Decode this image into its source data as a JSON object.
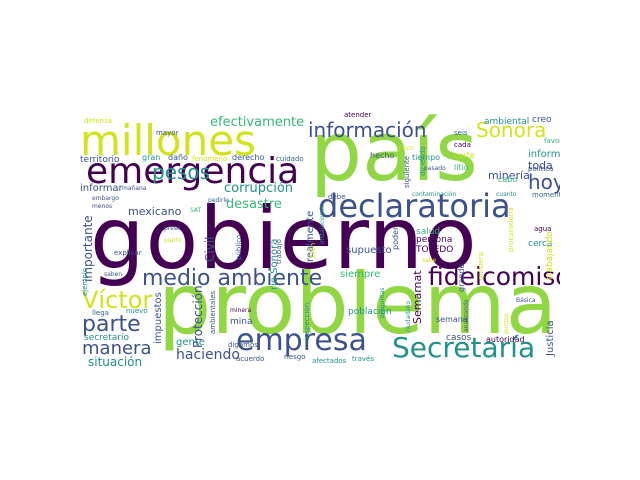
{
  "palette": {
    "background": "#ffffff",
    "dark_purple": "#440154",
    "indigo": "#3b528b",
    "blue": "#31688e",
    "teal": "#21918c",
    "green": "#35b779",
    "lime": "#90d743",
    "yellow": "#d2e21b"
  },
  "words": [
    {
      "text": "gobierno",
      "weight": 100,
      "color": "dark_purple",
      "orientation": "horizontal"
    },
    {
      "text": "país",
      "weight": 88,
      "color": "lime",
      "orientation": "horizontal"
    },
    {
      "text": "problema",
      "weight": 85,
      "color": "lime",
      "orientation": "horizontal"
    },
    {
      "text": "millones",
      "weight": 45,
      "color": "yellow",
      "orientation": "horizontal"
    },
    {
      "text": "emergencia",
      "weight": 42,
      "color": "dark_purple",
      "orientation": "horizontal"
    },
    {
      "text": "declaratoria",
      "weight": 36,
      "color": "indigo",
      "orientation": "horizontal"
    },
    {
      "text": "empresa",
      "weight": 34,
      "color": "indigo",
      "orientation": "horizontal"
    },
    {
      "text": "fideicomiso",
      "weight": 30,
      "color": "dark_purple",
      "orientation": "horizontal"
    },
    {
      "text": "Secretaría",
      "weight": 30,
      "color": "teal",
      "orientation": "horizontal"
    },
    {
      "text": "medio ambiente",
      "weight": 27,
      "color": "indigo",
      "orientation": "horizontal"
    },
    {
      "text": "Víctor",
      "weight": 24,
      "color": "yellow",
      "orientation": "horizontal"
    },
    {
      "text": "parte",
      "weight": 22,
      "color": "indigo",
      "orientation": "horizontal"
    },
    {
      "text": "información",
      "weight": 21,
      "color": "indigo",
      "orientation": "horizontal"
    },
    {
      "text": "Sonora",
      "weight": 21,
      "color": "yellow",
      "orientation": "horizontal"
    },
    {
      "text": "manera",
      "weight": 20,
      "color": "indigo",
      "orientation": "horizontal"
    },
    {
      "text": "pesos",
      "weight": 20,
      "color": "teal",
      "orientation": "horizontal"
    },
    {
      "text": "hoy",
      "weight": 19,
      "color": "indigo",
      "orientation": "horizontal"
    },
    {
      "text": "efectivamente",
      "weight": 14,
      "color": "green",
      "orientation": "horizontal"
    },
    {
      "text": "corrupción",
      "weight": 14,
      "color": "teal",
      "orientation": "horizontal"
    },
    {
      "text": "desastre",
      "weight": 14,
      "color": "green",
      "orientation": "horizontal"
    },
    {
      "text": "haciendo",
      "weight": 15,
      "color": "indigo",
      "orientation": "horizontal"
    },
    {
      "text": "situación",
      "weight": 13,
      "color": "teal",
      "orientation": "horizontal"
    },
    {
      "text": "minería",
      "weight": 12,
      "color": "indigo",
      "orientation": "horizontal"
    },
    {
      "text": "toda",
      "weight": 12,
      "color": "indigo",
      "orientation": "horizontal"
    },
    {
      "text": "informe",
      "weight": 11,
      "color": "teal",
      "orientation": "horizontal"
    },
    {
      "text": "mexicano",
      "weight": 11,
      "color": "indigo",
      "orientation": "horizontal"
    },
    {
      "text": "informar",
      "weight": 10,
      "color": "indigo",
      "orientation": "horizontal"
    },
    {
      "text": "gente",
      "weight": 11,
      "color": "teal",
      "orientation": "horizontal"
    },
    {
      "text": "casos",
      "weight": 10,
      "color": "indigo",
      "orientation": "horizontal"
    },
    {
      "text": "supuesto",
      "weight": 11,
      "color": "indigo",
      "orientation": "horizontal"
    },
    {
      "text": "siempre",
      "weight": 10,
      "color": "green",
      "orientation": "horizontal"
    },
    {
      "text": "mina",
      "weight": 10,
      "color": "indigo",
      "orientation": "horizontal"
    },
    {
      "text": "secretario",
      "weight": 10,
      "color": "teal",
      "orientation": "horizontal"
    },
    {
      "text": "ambiental",
      "weight": 9,
      "color": "teal",
      "orientation": "horizontal"
    },
    {
      "text": "cabo",
      "weight": 9,
      "color": "green",
      "orientation": "horizontal"
    },
    {
      "text": "territorio",
      "weight": 9,
      "color": "indigo",
      "orientation": "horizontal"
    },
    {
      "text": "salud",
      "weight": 9,
      "color": "green",
      "orientation": "horizontal"
    },
    {
      "text": "persona",
      "weight": 9,
      "color": "dark_purple",
      "orientation": "horizontal"
    },
    {
      "text": "TOLEDO",
      "weight": 9,
      "color": "dark_purple",
      "orientation": "horizontal"
    },
    {
      "text": "cerca",
      "weight": 9,
      "color": "teal",
      "orientation": "horizontal"
    },
    {
      "text": "población",
      "weight": 9,
      "color": "teal",
      "orientation": "horizontal"
    },
    {
      "text": "semana",
      "weight": 8,
      "color": "indigo",
      "orientation": "horizontal"
    },
    {
      "text": "autoridad",
      "weight": 8,
      "color": "dark_purple",
      "orientation": "horizontal"
    },
    {
      "text": "hecho",
      "weight": 8,
      "color": "indigo",
      "orientation": "horizontal"
    },
    {
      "text": "tiempo",
      "weight": 8,
      "color": "teal",
      "orientation": "horizontal"
    },
    {
      "text": "litio",
      "weight": 8,
      "color": "green",
      "orientation": "horizontal"
    },
    {
      "text": "corte",
      "weight": 8,
      "color": "yellow",
      "orientation": "horizontal"
    },
    {
      "text": "gran",
      "weight": 8,
      "color": "teal",
      "orientation": "horizontal"
    },
    {
      "text": "daño",
      "weight": 8,
      "color": "indigo",
      "orientation": "horizontal"
    },
    {
      "text": "derecho",
      "weight": 8,
      "color": "indigo",
      "orientation": "horizontal"
    },
    {
      "text": "fenómeno",
      "weight": 7,
      "color": "yellow",
      "orientation": "horizontal"
    },
    {
      "text": "cuidado",
      "weight": 7,
      "color": "blue",
      "orientation": "horizontal"
    },
    {
      "text": "defensa",
      "weight": 7,
      "color": "yellow",
      "orientation": "horizontal"
    },
    {
      "text": "mayor",
      "weight": 7,
      "color": "indigo",
      "orientation": "horizontal"
    },
    {
      "text": "seis",
      "weight": 7,
      "color": "blue",
      "orientation": "horizontal"
    },
    {
      "text": "cada",
      "weight": 7,
      "color": "dark_purple",
      "orientation": "horizontal"
    },
    {
      "text": "favor",
      "weight": 7,
      "color": "green",
      "orientation": "horizontal"
    },
    {
      "text": "creo",
      "weight": 10,
      "color": "indigo",
      "orientation": "horizontal"
    },
    {
      "text": "política",
      "weight": 7,
      "color": "indigo",
      "orientation": "horizontal"
    },
    {
      "text": "agua",
      "weight": 7,
      "color": "dark_purple",
      "orientation": "horizontal"
    },
    {
      "text": "momento",
      "weight": 7,
      "color": "blue",
      "orientation": "horizontal"
    },
    {
      "text": "atender",
      "weight": 7,
      "color": "dark_purple",
      "orientation": "horizontal"
    },
    {
      "text": "cinco",
      "weight": 6,
      "color": "yellow",
      "orientation": "horizontal"
    },
    {
      "text": "pasado",
      "weight": 6,
      "color": "indigo",
      "orientation": "horizontal"
    },
    {
      "text": "contaminación",
      "weight": 6,
      "color": "teal",
      "orientation": "horizontal"
    },
    {
      "text": "cuanto",
      "weight": 6,
      "color": "teal",
      "orientation": "horizontal"
    },
    {
      "text": "debe",
      "weight": 7,
      "color": "indigo",
      "orientation": "horizontal"
    },
    {
      "text": "mañana",
      "weight": 6,
      "color": "indigo",
      "orientation": "horizontal"
    },
    {
      "text": "embargo",
      "weight": 6,
      "color": "indigo",
      "orientation": "horizontal"
    },
    {
      "text": "menos",
      "weight": 6,
      "color": "indigo",
      "orientation": "horizontal"
    },
    {
      "text": "pedirle",
      "weight": 6,
      "color": "blue",
      "orientation": "horizontal"
    },
    {
      "text": "SAT",
      "weight": 6,
      "color": "green",
      "orientation": "horizontal"
    },
    {
      "text": "presa",
      "weight": 6,
      "color": "indigo",
      "orientation": "horizontal"
    },
    {
      "text": "punto",
      "weight": 6,
      "color": "yellow",
      "orientation": "horizontal"
    },
    {
      "text": "explicar",
      "weight": 6,
      "color": "indigo",
      "orientation": "horizontal"
    },
    {
      "text": "llega",
      "weight": 6,
      "color": "blue",
      "orientation": "horizontal"
    },
    {
      "text": "saben",
      "weight": 6,
      "color": "indigo",
      "orientation": "horizontal"
    },
    {
      "text": "nuevo",
      "weight": 6,
      "color": "teal",
      "orientation": "horizontal"
    },
    {
      "text": "minera",
      "weight": 6,
      "color": "dark_purple",
      "orientation": "horizontal"
    },
    {
      "text": "digamos",
      "weight": 7,
      "color": "indigo",
      "orientation": "horizontal"
    },
    {
      "text": "acuerdo",
      "weight": 7,
      "color": "indigo",
      "orientation": "horizontal"
    },
    {
      "text": "riesgo",
      "weight": 6,
      "color": "indigo",
      "orientation": "horizontal"
    },
    {
      "text": "afectados",
      "weight": 7,
      "color": "teal",
      "orientation": "horizontal"
    },
    {
      "text": "través",
      "weight": 7,
      "color": "teal",
      "orientation": "horizontal"
    },
    {
      "text": "sabe",
      "weight": 6,
      "color": "yellow",
      "orientation": "horizontal"
    },
    {
      "text": "Básica",
      "weight": 6,
      "color": "indigo",
      "orientation": "horizontal"
    },
    {
      "text": "Semarnat",
      "weight": 10,
      "color": "dark_purple",
      "orientation": "vertical"
    },
    {
      "text": "Protección",
      "weight": 11,
      "color": "indigo",
      "orientation": "vertical"
    },
    {
      "text": "Civil",
      "weight": 11,
      "color": "indigo",
      "orientation": "vertical"
    },
    {
      "text": "importante",
      "weight": 11,
      "color": "indigo",
      "orientation": "vertical"
    },
    {
      "text": "impuestos",
      "weight": 9,
      "color": "indigo",
      "orientation": "vertical"
    },
    {
      "text": "rio Sonora",
      "weight": 9,
      "color": "teal",
      "orientation": "vertical"
    },
    {
      "text": "realmente",
      "weight": 9,
      "color": "indigo",
      "orientation": "vertical"
    },
    {
      "text": "Justicia",
      "weight": 9,
      "color": "indigo",
      "orientation": "vertical"
    },
    {
      "text": "trabajando",
      "weight": 8,
      "color": "yellow",
      "orientation": "vertical"
    },
    {
      "text": "grande",
      "weight": 7,
      "color": "indigo",
      "orientation": "vertical"
    },
    {
      "text": "poder",
      "weight": 7,
      "color": "indigo",
      "orientation": "vertical"
    },
    {
      "text": "inspección",
      "weight": 6,
      "color": "teal",
      "orientation": "vertical"
    },
    {
      "text": "ambientales",
      "weight": 6,
      "color": "indigo",
      "orientation": "vertical"
    },
    {
      "text": "ejemplo",
      "weight": 6,
      "color": "teal",
      "orientation": "vertical"
    },
    {
      "text": "público",
      "weight": 6,
      "color": "blue",
      "orientation": "vertical"
    },
    {
      "text": "trabajo",
      "weight": 6,
      "color": "indigo",
      "orientation": "vertical"
    },
    {
      "text": "bien",
      "weight": 6,
      "color": "yellow",
      "orientation": "vertical"
    },
    {
      "text": "instalaciones",
      "weight": 5,
      "color": "teal",
      "orientation": "vertical"
    },
    {
      "text": "diciendo",
      "weight": 6,
      "color": "teal",
      "orientation": "vertical"
    },
    {
      "text": "siguiente",
      "weight": 6,
      "color": "indigo",
      "orientation": "vertical"
    },
    {
      "text": "preguntas",
      "weight": 5,
      "color": "teal",
      "orientation": "vertical"
    },
    {
      "text": "ciudadano",
      "weight": 5,
      "color": "teal",
      "orientation": "vertical"
    },
    {
      "text": "analizando",
      "weight": 5,
      "color": "indigo",
      "orientation": "vertical"
    },
    {
      "text": "quisiera",
      "weight": 6,
      "color": "yellow",
      "orientation": "vertical"
    },
    {
      "text": "procuraduría",
      "weight": 6,
      "color": "yellow",
      "orientation": "vertical"
    },
    {
      "text": "puntos",
      "weight": 5,
      "color": "yellow",
      "orientation": "vertical"
    }
  ]
}
